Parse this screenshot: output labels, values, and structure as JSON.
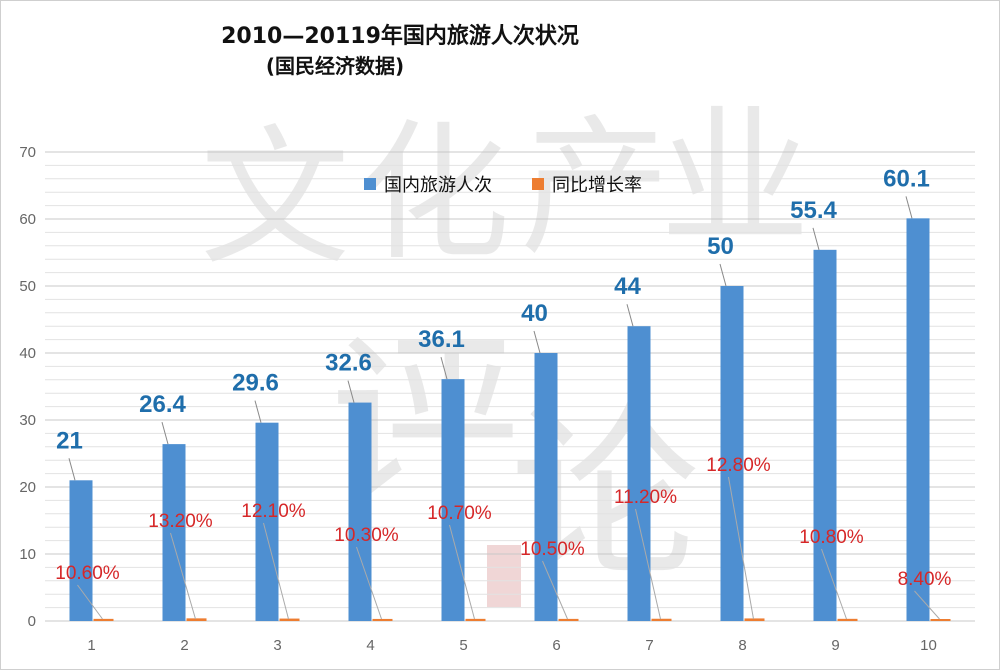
{
  "chart_data": {
    "type": "bar",
    "title": "2010—20119年国内旅游人次状况",
    "subtitle": "(国民经济数据)",
    "categories": [
      "1",
      "2",
      "3",
      "4",
      "5",
      "6",
      "7",
      "8",
      "9",
      "10"
    ],
    "series": [
      {
        "name": "国内旅游人次",
        "values": [
          21,
          26.4,
          29.6,
          32.6,
          36.1,
          40,
          44,
          50,
          55.4,
          60.1
        ],
        "value_labels": [
          "21",
          "26.4",
          "29.6",
          "32.6",
          "36.1",
          "40",
          "44",
          "50",
          "55.4",
          "60.1"
        ],
        "color": "#4e8fd1"
      },
      {
        "name": "同比增长率",
        "values": [
          0.106,
          0.132,
          0.121,
          0.103,
          0.107,
          0.105,
          0.112,
          0.128,
          0.108,
          0.084
        ],
        "value_labels": [
          "10.60%",
          "13.20%",
          "12.10%",
          "10.30%",
          "10.70%",
          "10.50%",
          "11.20%",
          "12.80%",
          "10.80%",
          "8.40%"
        ],
        "color": "#ed7d31"
      }
    ],
    "ylim": [
      0,
      70
    ],
    "yticks": [
      "0",
      "10",
      "20",
      "30",
      "40",
      "50",
      "60",
      "70"
    ],
    "grid": true,
    "legend_position": "top-center",
    "watermark": "文化产业评论"
  }
}
